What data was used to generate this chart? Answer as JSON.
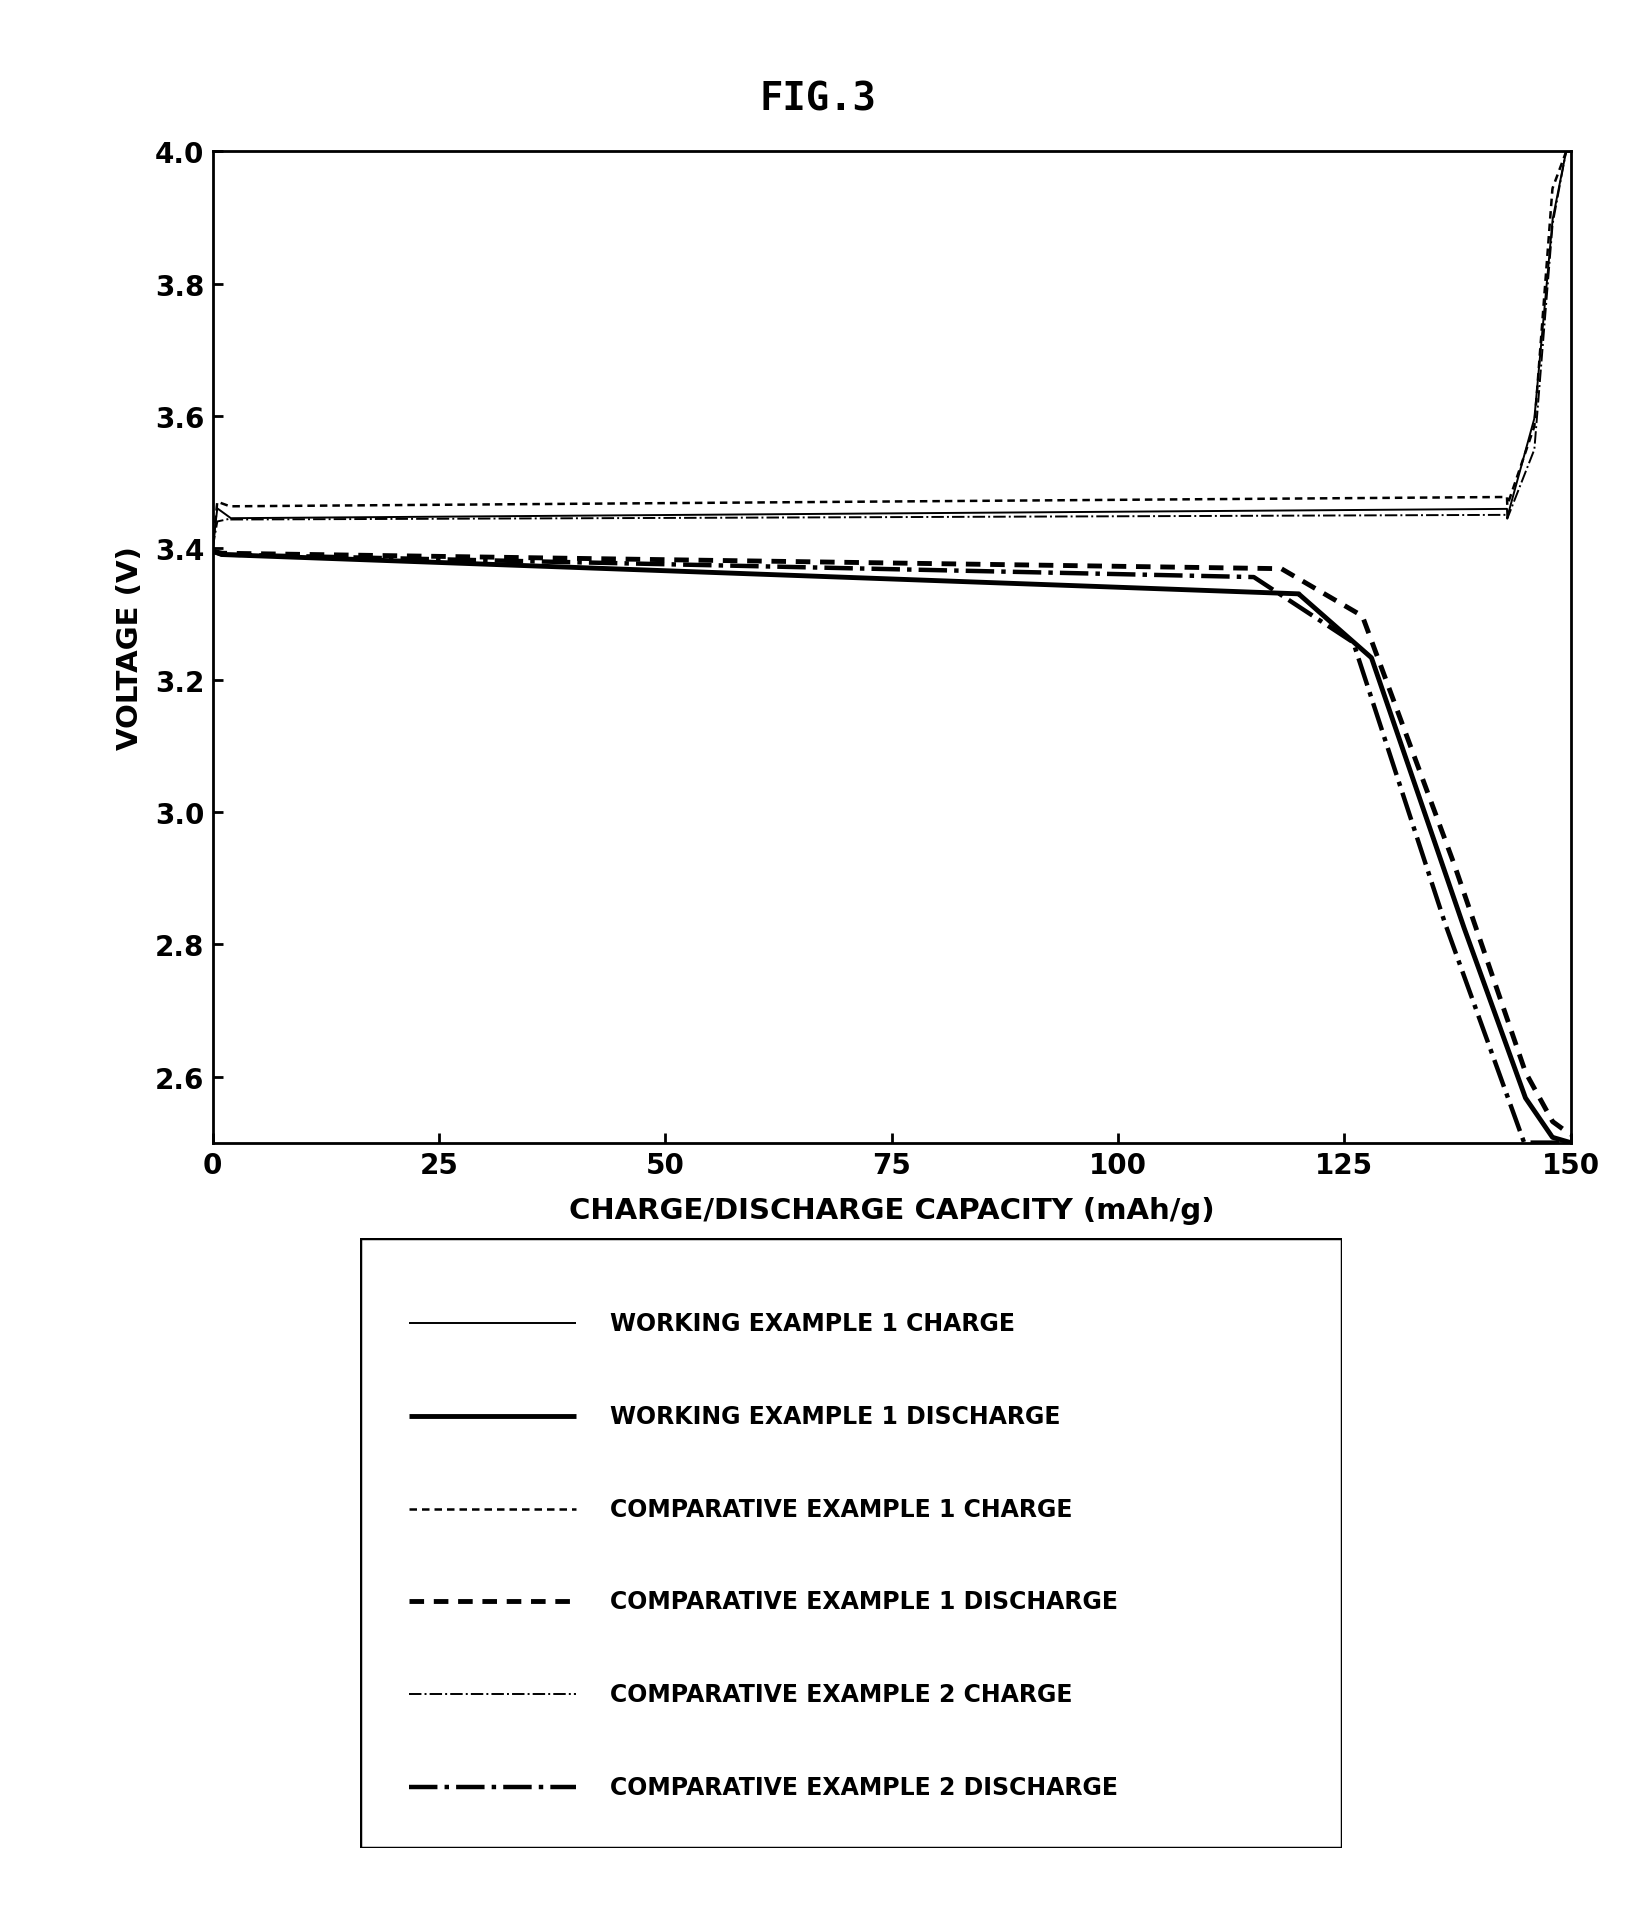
{
  "title": "FIG.3",
  "xlabel": "CHARGE/DISCHARGE CAPACITY (mAh/g)",
  "ylabel": "VOLTAGE (V)",
  "xlim": [
    0,
    150
  ],
  "ylim": [
    2.5,
    4.0
  ],
  "xticks": [
    0,
    25,
    50,
    75,
    100,
    125,
    150
  ],
  "yticks": [
    2.6,
    2.8,
    3.0,
    3.2,
    3.4,
    3.6,
    3.8,
    4.0
  ],
  "legend_entries": [
    "WORKING EXAMPLE 1 CHARGE",
    "WORKING EXAMPLE 1 DISCHARGE",
    "COMPARATIVE EXAMPLE 1 CHARGE",
    "COMPARATIVE EXAMPLE 1 DISCHARGE",
    "COMPARATIVE EXAMPLE 2 CHARGE",
    "COMPARATIVE EXAMPLE 2 DISCHARGE"
  ]
}
